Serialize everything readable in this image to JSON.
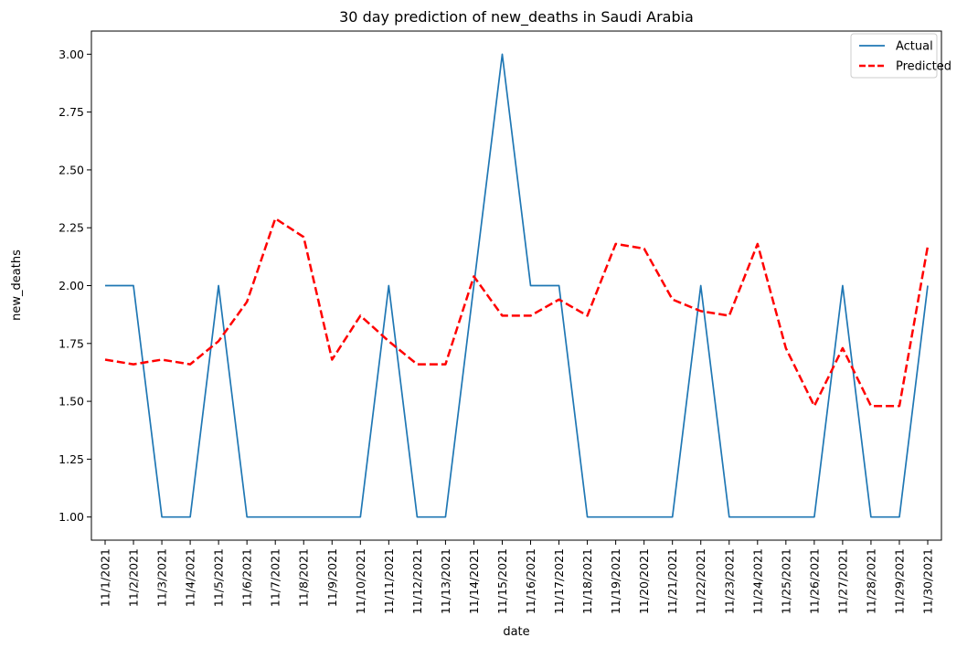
{
  "chart_data": {
    "type": "line",
    "title": "30 day prediction of new_deaths in Saudi Arabia",
    "xlabel": "date",
    "ylabel": "new_deaths",
    "ylim": [
      0.9,
      3.1
    ],
    "yticks": [
      1.0,
      1.25,
      1.5,
      1.75,
      2.0,
      2.25,
      2.5,
      2.75,
      3.0
    ],
    "ytick_labels": [
      "1.00",
      "1.25",
      "1.50",
      "1.75",
      "2.00",
      "2.25",
      "2.50",
      "2.75",
      "3.00"
    ],
    "grid": false,
    "legend_position": "top-right",
    "categories": [
      "11/1/2021",
      "11/2/2021",
      "11/3/2021",
      "11/4/2021",
      "11/5/2021",
      "11/6/2021",
      "11/7/2021",
      "11/8/2021",
      "11/9/2021",
      "11/10/2021",
      "11/11/2021",
      "11/12/2021",
      "11/13/2021",
      "11/14/2021",
      "11/15/2021",
      "11/16/2021",
      "11/17/2021",
      "11/18/2021",
      "11/19/2021",
      "11/20/2021",
      "11/21/2021",
      "11/22/2021",
      "11/23/2021",
      "11/24/2021",
      "11/25/2021",
      "11/26/2021",
      "11/27/2021",
      "11/28/2021",
      "11/29/2021",
      "11/30/2021"
    ],
    "series": [
      {
        "name": "Actual",
        "color": "#1f77b4",
        "style": "solid",
        "values": [
          2,
          2,
          1,
          1,
          2,
          1,
          1,
          1,
          1,
          1,
          2,
          1,
          1,
          2,
          3,
          2,
          2,
          1,
          1,
          1,
          1,
          2,
          1,
          1,
          1,
          1,
          2,
          1,
          1,
          2
        ]
      },
      {
        "name": "Predicted",
        "color": "#ff0000",
        "style": "dashed",
        "values": [
          1.68,
          1.66,
          1.68,
          1.66,
          1.76,
          1.93,
          2.29,
          2.21,
          1.68,
          1.87,
          1.76,
          1.66,
          1.66,
          2.04,
          1.87,
          1.87,
          1.94,
          1.87,
          2.18,
          2.16,
          1.94,
          1.89,
          1.87,
          2.18,
          1.73,
          1.48,
          1.73,
          1.48,
          1.48,
          2.17
        ]
      }
    ]
  }
}
